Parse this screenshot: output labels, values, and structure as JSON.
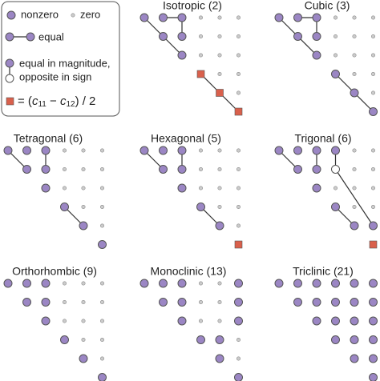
{
  "legend": {
    "nonzero": "nonzero",
    "zero": "zero",
    "equal": "equal",
    "opposite": [
      "equal in magnitude,",
      "opposite in sign"
    ],
    "formula": [
      "= (",
      "c",
      "11",
      " − ",
      "c",
      "12",
      ") / 2"
    ]
  },
  "panels": [
    {
      "title": "Isotropic (2)"
    },
    {
      "title": "Cubic (3)"
    },
    {
      "title": "Tetragonal (6)"
    },
    {
      "title": "Hexagonal (5)"
    },
    {
      "title": "Trigonal (6)"
    },
    {
      "title": "Orthorhombic (9)"
    },
    {
      "title": "Monoclinic (13)"
    },
    {
      "title": "Triclinic (21)"
    }
  ]
}
